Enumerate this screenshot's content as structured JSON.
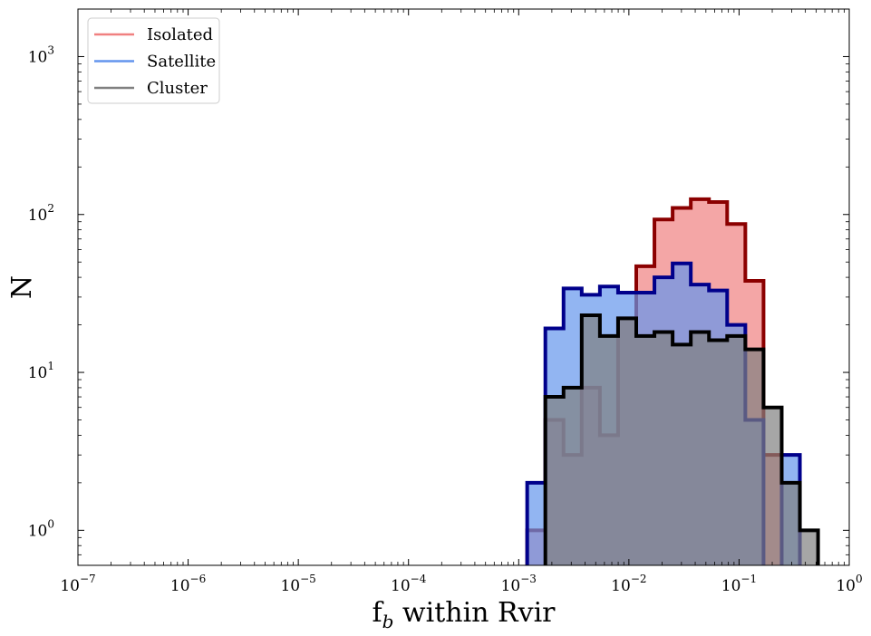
{
  "chart_data": {
    "type": "histogram",
    "xscale": "log",
    "yscale": "log",
    "xlim": [
      1e-07,
      1
    ],
    "ylim": [
      0.6,
      2000
    ],
    "xlabel": {
      "main": "f",
      "sub": "b",
      "rest": " within Rvir"
    },
    "ylabel": "N",
    "x_ticks": [
      {
        "base": "10",
        "exp": "−7",
        "value": 1e-07
      },
      {
        "base": "10",
        "exp": "−6",
        "value": 1e-06
      },
      {
        "base": "10",
        "exp": "−5",
        "value": 1e-05
      },
      {
        "base": "10",
        "exp": "−4",
        "value": 0.0001
      },
      {
        "base": "10",
        "exp": "−3",
        "value": 0.001
      },
      {
        "base": "10",
        "exp": "−2",
        "value": 0.01
      },
      {
        "base": "10",
        "exp": "−1",
        "value": 0.1
      },
      {
        "base": "10",
        "exp": "0",
        "value": 1
      }
    ],
    "y_ticks": [
      {
        "base": "10",
        "exp": "0",
        "value": 1
      },
      {
        "base": "10",
        "exp": "1",
        "value": 10
      },
      {
        "base": "10",
        "exp": "2",
        "value": 100
      },
      {
        "base": "10",
        "exp": "3",
        "value": 1000
      }
    ],
    "legend": {
      "placement": "top-left"
    },
    "bin_edges_log10": [
      -2.923,
      -2.758,
      -2.593,
      -2.428,
      -2.263,
      -2.098,
      -1.933,
      -1.768,
      -1.603,
      -1.438,
      -1.273,
      -1.108,
      -0.943,
      -0.778,
      -0.613,
      -0.448,
      -0.283
    ],
    "series": [
      {
        "name": "Isolated",
        "legend_color": "#f08080",
        "edge_color": "#8b0000",
        "fill_color": "#f08080",
        "fill_opacity": 0.7,
        "counts": [
          1,
          5,
          3,
          8,
          4,
          22,
          47,
          93,
          110,
          125,
          120,
          87,
          38,
          3,
          0,
          0
        ]
      },
      {
        "name": "Satellite",
        "legend_color": "#6495ed",
        "edge_color": "#00008b",
        "fill_color": "#6495ed",
        "fill_opacity": 0.7,
        "counts": [
          2,
          19,
          34,
          31,
          35,
          32,
          32,
          40,
          49,
          36,
          33,
          20,
          5,
          0,
          3,
          0
        ]
      },
      {
        "name": "Cluster",
        "legend_color": "#808080",
        "edge_color": "#000000",
        "fill_color": "#808080",
        "fill_opacity": 0.7,
        "counts": [
          0,
          7,
          8,
          23,
          17,
          22,
          17,
          18,
          15,
          18,
          16,
          17,
          14,
          6,
          2,
          1
        ]
      }
    ]
  }
}
